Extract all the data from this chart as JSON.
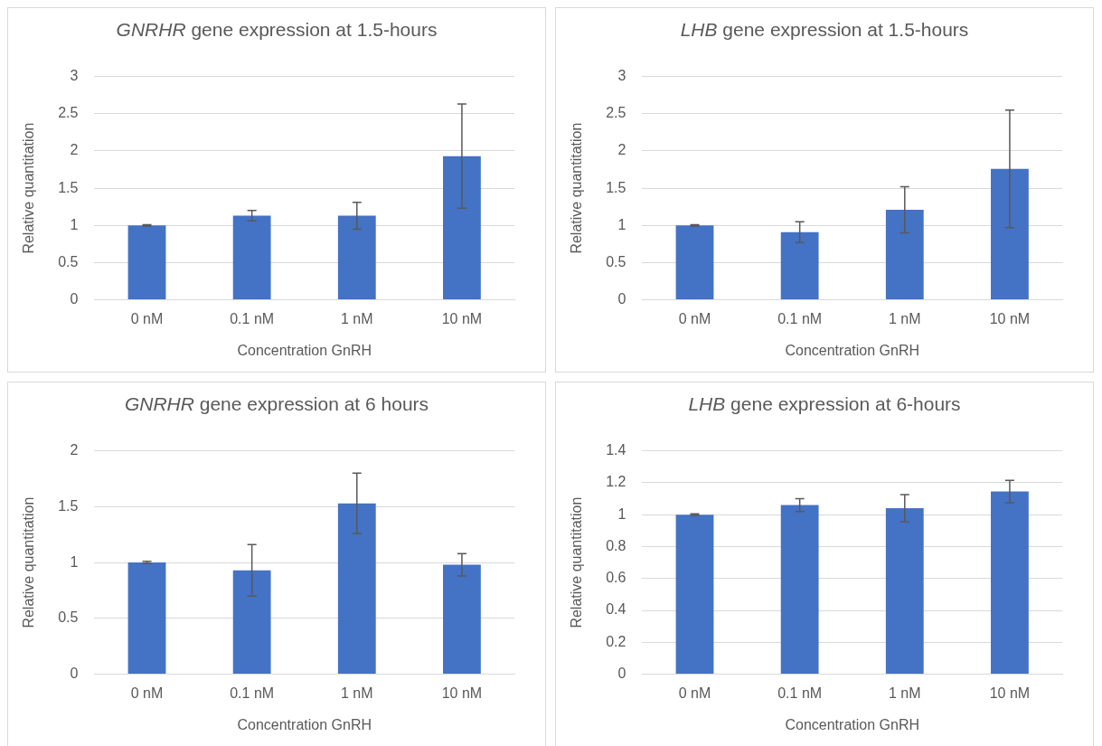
{
  "chart_data": [
    {
      "type": "bar",
      "title": "GNRHR gene expression at 1.5-hours",
      "xlabel": "Concentration GnRH",
      "ylabel": "Relative quantitation",
      "categories": [
        "0 nM",
        "0.1 nM",
        "1 nM",
        "10 nM"
      ],
      "values": [
        1.0,
        1.13,
        1.13,
        1.93
      ],
      "errors": [
        0.01,
        0.07,
        0.18,
        0.7
      ],
      "color": "#4472c4",
      "ylim": [
        0,
        3
      ],
      "yticks": [
        0,
        0.5,
        1,
        1.5,
        2,
        2.5,
        3
      ],
      "grid": "y",
      "legend": false
    },
    {
      "type": "bar",
      "title": "LHB gene expression at 1.5-hours",
      "xlabel": "Concentration GnRH",
      "ylabel": "Relative quantitation",
      "categories": [
        "0 nM",
        "0.1 nM",
        "1 nM",
        "10 nM"
      ],
      "values": [
        1.0,
        0.91,
        1.21,
        1.76
      ],
      "errors": [
        0.01,
        0.14,
        0.31,
        0.79
      ],
      "color": "#4472c4",
      "ylim": [
        0,
        3
      ],
      "yticks": [
        0,
        0.5,
        1,
        1.5,
        2,
        2.5,
        3
      ],
      "grid": "y",
      "legend": false
    },
    {
      "type": "bar",
      "title": "GNRHR gene expression at 6 hours",
      "xlabel": "Concentration GnRH",
      "ylabel": "Relative quantitation",
      "categories": [
        "0 nM",
        "0.1 nM",
        "1 nM",
        "10 nM"
      ],
      "values": [
        1.0,
        0.93,
        1.53,
        0.98
      ],
      "errors": [
        0.01,
        0.23,
        0.27,
        0.1
      ],
      "color": "#4472c4",
      "ylim": [
        0,
        2
      ],
      "yticks": [
        0,
        0.5,
        1,
        1.5,
        2
      ],
      "grid": "y",
      "legend": false
    },
    {
      "type": "bar",
      "title": "LHB gene expression at 6-hours",
      "xlabel": "Concentration GnRH",
      "ylabel": "Relative quantitation",
      "categories": [
        "0 nM",
        "0.1 nM",
        "1 nM",
        "10 nM"
      ],
      "values": [
        1.0,
        1.06,
        1.04,
        1.145
      ],
      "errors": [
        0.005,
        0.04,
        0.085,
        0.07
      ],
      "color": "#4472c4",
      "ylim": [
        0,
        1.4
      ],
      "yticks": [
        0,
        0.2,
        0.4,
        0.6,
        0.8,
        1,
        1.2,
        1.4
      ],
      "grid": "y",
      "legend": false
    }
  ]
}
